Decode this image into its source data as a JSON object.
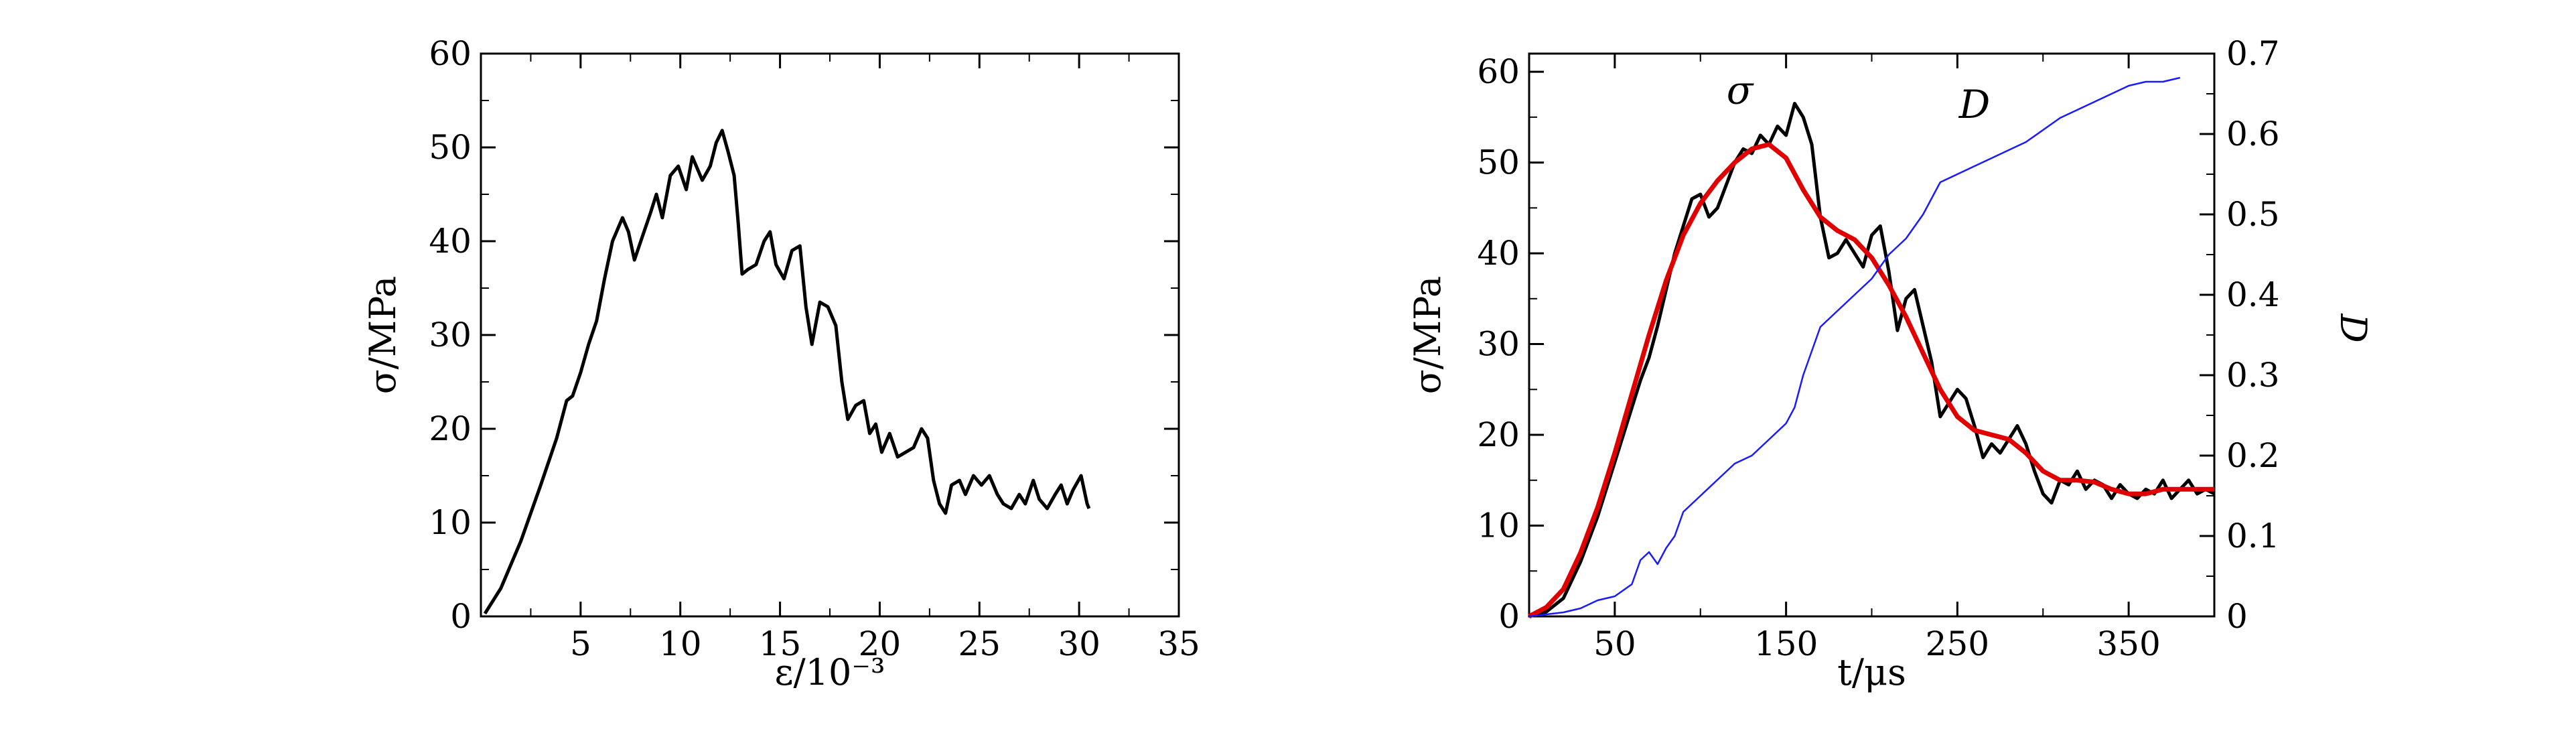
{
  "colors": {
    "stress": "#000000",
    "fit": "#e00000",
    "damage": "#1a1aff",
    "frame": "#000000"
  },
  "chart_data": [
    {
      "type": "line",
      "xlabel": "ε/10⁻³",
      "ylabel": "σ/MPa",
      "xlim": [
        0,
        35
      ],
      "ylim": [
        0,
        60
      ],
      "x_ticks": [
        5,
        10,
        15,
        20,
        25,
        30,
        35
      ],
      "x_tick_labels": [
        "5",
        "10",
        "15",
        "20",
        "25",
        "30",
        "35"
      ],
      "y_ticks": [
        0,
        10,
        20,
        30,
        40,
        50,
        60
      ],
      "y_tick_labels": [
        "0",
        "10",
        "20",
        "30",
        "40",
        "50",
        "60"
      ],
      "grid": false,
      "series": [
        {
          "color": "#000000",
          "points": [
            [
              0.2,
              0.3
            ],
            [
              1,
              3
            ],
            [
              2,
              8
            ],
            [
              3,
              14
            ],
            [
              3.8,
              19
            ],
            [
              4.3,
              23
            ],
            [
              4.6,
              23.5
            ],
            [
              5,
              26
            ],
            [
              5.4,
              29
            ],
            [
              5.8,
              31.5
            ],
            [
              6.2,
              36
            ],
            [
              6.6,
              40
            ],
            [
              7.1,
              42.5
            ],
            [
              7.4,
              41
            ],
            [
              7.7,
              38
            ],
            [
              8.1,
              40.5
            ],
            [
              8.5,
              43
            ],
            [
              8.8,
              45
            ],
            [
              9.1,
              42.5
            ],
            [
              9.5,
              47
            ],
            [
              9.9,
              48
            ],
            [
              10.3,
              45.5
            ],
            [
              10.6,
              49
            ],
            [
              11.1,
              46.5
            ],
            [
              11.5,
              48
            ],
            [
              11.8,
              50.5
            ],
            [
              12.1,
              51.8
            ],
            [
              12.4,
              49.5
            ],
            [
              12.7,
              47
            ],
            [
              12.9,
              42
            ],
            [
              13.1,
              36.5
            ],
            [
              13.4,
              37
            ],
            [
              13.8,
              37.5
            ],
            [
              14.2,
              40
            ],
            [
              14.5,
              41
            ],
            [
              14.8,
              37.5
            ],
            [
              15.2,
              36
            ],
            [
              15.6,
              39
            ],
            [
              16,
              39.5
            ],
            [
              16.3,
              33
            ],
            [
              16.6,
              29
            ],
            [
              17,
              33.5
            ],
            [
              17.4,
              33
            ],
            [
              17.8,
              31
            ],
            [
              18.1,
              25
            ],
            [
              18.4,
              21
            ],
            [
              18.8,
              22.5
            ],
            [
              19.2,
              23
            ],
            [
              19.5,
              19.5
            ],
            [
              19.8,
              20.5
            ],
            [
              20.1,
              17.5
            ],
            [
              20.5,
              19.5
            ],
            [
              20.9,
              17
            ],
            [
              21.3,
              17.5
            ],
            [
              21.7,
              18
            ],
            [
              22.1,
              20
            ],
            [
              22.4,
              19
            ],
            [
              22.7,
              14.5
            ],
            [
              23,
              12
            ],
            [
              23.3,
              11
            ],
            [
              23.6,
              14
            ],
            [
              24,
              14.5
            ],
            [
              24.3,
              13
            ],
            [
              24.7,
              15
            ],
            [
              25.1,
              14
            ],
            [
              25.5,
              15
            ],
            [
              25.9,
              13
            ],
            [
              26.2,
              12
            ],
            [
              26.6,
              11.5
            ],
            [
              27,
              13
            ],
            [
              27.3,
              12
            ],
            [
              27.7,
              14.5
            ],
            [
              28,
              12.5
            ],
            [
              28.4,
              11.5
            ],
            [
              28.8,
              13
            ],
            [
              29.1,
              14
            ],
            [
              29.4,
              12
            ],
            [
              29.7,
              13.5
            ],
            [
              30.1,
              15
            ],
            [
              30.4,
              12
            ],
            [
              30.5,
              11.5
            ]
          ]
        }
      ]
    },
    {
      "type": "line",
      "xlabel": "t/μs",
      "ylabel": "σ/MPa",
      "y2label": "D",
      "xlim": [
        0,
        400
      ],
      "ylim": [
        0,
        62
      ],
      "y2lim": [
        0,
        0.7
      ],
      "x_ticks": [
        50,
        150,
        250,
        350
      ],
      "x_tick_labels": [
        "50",
        "150",
        "250",
        "350"
      ],
      "y_ticks": [
        0,
        10,
        20,
        30,
        40,
        50,
        60
      ],
      "y_tick_labels": [
        "0",
        "10",
        "20",
        "30",
        "40",
        "50",
        "60"
      ],
      "y2_ticks": [
        0,
        0.1,
        0.2,
        0.3,
        0.4,
        0.5,
        0.6,
        0.7
      ],
      "y2_tick_labels": [
        "0",
        "0.1",
        "0.2",
        "0.3",
        "0.4",
        "0.5",
        "0.6",
        "0.7"
      ],
      "grid": false,
      "annotations": [
        "σ",
        "D"
      ],
      "series": [
        {
          "axis": "left",
          "color": "#000000",
          "points": [
            [
              0,
              0
            ],
            [
              10,
              0.5
            ],
            [
              20,
              2
            ],
            [
              30,
              6
            ],
            [
              40,
              11
            ],
            [
              50,
              17
            ],
            [
              60,
              23
            ],
            [
              65,
              26
            ],
            [
              70,
              28.5
            ],
            [
              75,
              32
            ],
            [
              80,
              36
            ],
            [
              85,
              40
            ],
            [
              90,
              43
            ],
            [
              95,
              46
            ],
            [
              100,
              46.5
            ],
            [
              105,
              44
            ],
            [
              110,
              45
            ],
            [
              115,
              47.5
            ],
            [
              120,
              50
            ],
            [
              125,
              51.5
            ],
            [
              130,
              51
            ],
            [
              135,
              53
            ],
            [
              140,
              52
            ],
            [
              145,
              54
            ],
            [
              150,
              53
            ],
            [
              155,
              56.5
            ],
            [
              160,
              55
            ],
            [
              165,
              52
            ],
            [
              170,
              44
            ],
            [
              175,
              39.5
            ],
            [
              180,
              40
            ],
            [
              185,
              41.5
            ],
            [
              190,
              40
            ],
            [
              195,
              38.5
            ],
            [
              200,
              42
            ],
            [
              205,
              43
            ],
            [
              210,
              38
            ],
            [
              215,
              31.5
            ],
            [
              220,
              35
            ],
            [
              225,
              36
            ],
            [
              230,
              32
            ],
            [
              235,
              28
            ],
            [
              240,
              22
            ],
            [
              245,
              23.5
            ],
            [
              250,
              25
            ],
            [
              255,
              24
            ],
            [
              260,
              21
            ],
            [
              265,
              17.5
            ],
            [
              270,
              19
            ],
            [
              275,
              18
            ],
            [
              280,
              19.5
            ],
            [
              285,
              21
            ],
            [
              290,
              19
            ],
            [
              295,
              16
            ],
            [
              300,
              13.5
            ],
            [
              305,
              12.5
            ],
            [
              310,
              15
            ],
            [
              315,
              14.5
            ],
            [
              320,
              16
            ],
            [
              325,
              14
            ],
            [
              330,
              15
            ],
            [
              335,
              14.5
            ],
            [
              340,
              13
            ],
            [
              345,
              14.5
            ],
            [
              350,
              13.5
            ],
            [
              355,
              13
            ],
            [
              360,
              14
            ],
            [
              365,
              13.5
            ],
            [
              370,
              15
            ],
            [
              375,
              13
            ],
            [
              380,
              14
            ],
            [
              385,
              15
            ],
            [
              390,
              13.5
            ],
            [
              395,
              14
            ],
            [
              400,
              13.5
            ]
          ]
        },
        {
          "axis": "left",
          "color": "#e00000",
          "points": [
            [
              0,
              0
            ],
            [
              10,
              1
            ],
            [
              20,
              3
            ],
            [
              30,
              7
            ],
            [
              40,
              12
            ],
            [
              50,
              18
            ],
            [
              60,
              24.5
            ],
            [
              70,
              31
            ],
            [
              80,
              37
            ],
            [
              90,
              42
            ],
            [
              100,
              45.5
            ],
            [
              110,
              48
            ],
            [
              120,
              50
            ],
            [
              130,
              51.5
            ],
            [
              140,
              52
            ],
            [
              150,
              50.5
            ],
            [
              160,
              47
            ],
            [
              170,
              44
            ],
            [
              180,
              42.5
            ],
            [
              190,
              41.5
            ],
            [
              200,
              39.5
            ],
            [
              210,
              36.5
            ],
            [
              220,
              33
            ],
            [
              230,
              29
            ],
            [
              240,
              25
            ],
            [
              250,
              22
            ],
            [
              260,
              20.5
            ],
            [
              270,
              20
            ],
            [
              280,
              19.5
            ],
            [
              290,
              18
            ],
            [
              300,
              16
            ],
            [
              310,
              15
            ],
            [
              320,
              15
            ],
            [
              330,
              14.8
            ],
            [
              340,
              14
            ],
            [
              350,
              13.5
            ],
            [
              360,
              13.5
            ],
            [
              370,
              14
            ],
            [
              380,
              14
            ],
            [
              390,
              14
            ],
            [
              400,
              14
            ]
          ]
        },
        {
          "axis": "right",
          "color": "#1a1aff",
          "points": [
            [
              0,
              0
            ],
            [
              20,
              0.005
            ],
            [
              30,
              0.01
            ],
            [
              40,
              0.02
            ],
            [
              50,
              0.025
            ],
            [
              60,
              0.04
            ],
            [
              65,
              0.07
            ],
            [
              70,
              0.08
            ],
            [
              75,
              0.065
            ],
            [
              80,
              0.085
            ],
            [
              85,
              0.1
            ],
            [
              90,
              0.13
            ],
            [
              95,
              0.14
            ],
            [
              100,
              0.15
            ],
            [
              110,
              0.17
            ],
            [
              120,
              0.19
            ],
            [
              130,
              0.2
            ],
            [
              140,
              0.22
            ],
            [
              150,
              0.24
            ],
            [
              155,
              0.26
            ],
            [
              160,
              0.3
            ],
            [
              165,
              0.33
            ],
            [
              170,
              0.36
            ],
            [
              180,
              0.38
            ],
            [
              190,
              0.4
            ],
            [
              200,
              0.42
            ],
            [
              210,
              0.45
            ],
            [
              220,
              0.47
            ],
            [
              230,
              0.5
            ],
            [
              235,
              0.52
            ],
            [
              240,
              0.54
            ],
            [
              250,
              0.55
            ],
            [
              260,
              0.56
            ],
            [
              270,
              0.57
            ],
            [
              280,
              0.58
            ],
            [
              290,
              0.59
            ],
            [
              300,
              0.605
            ],
            [
              310,
              0.62
            ],
            [
              320,
              0.63
            ],
            [
              330,
              0.64
            ],
            [
              340,
              0.65
            ],
            [
              350,
              0.66
            ],
            [
              360,
              0.665
            ],
            [
              370,
              0.665
            ],
            [
              380,
              0.67
            ]
          ]
        }
      ]
    }
  ]
}
